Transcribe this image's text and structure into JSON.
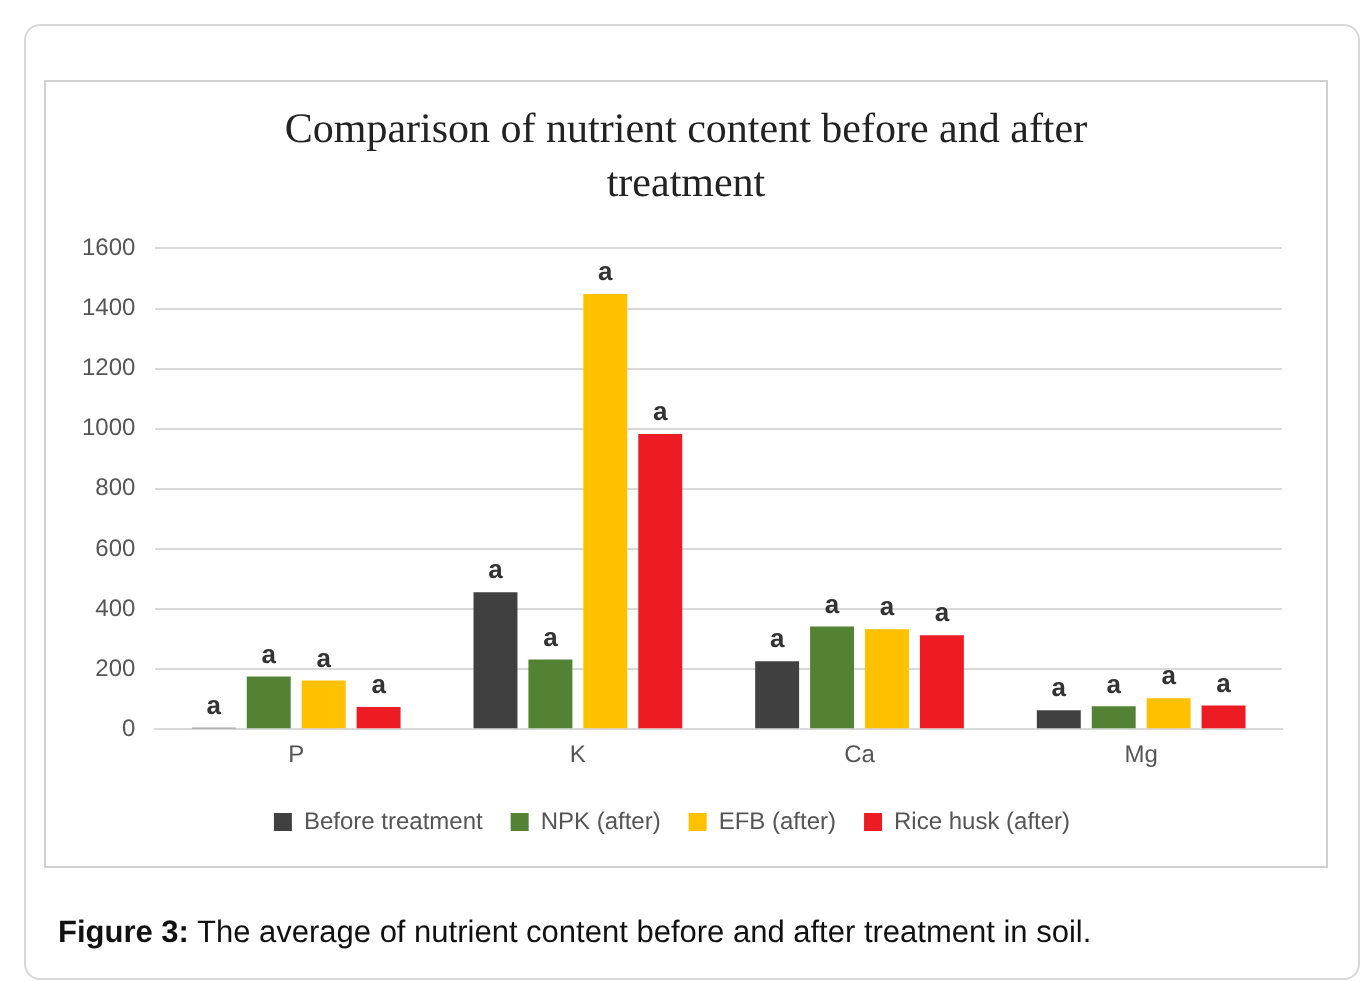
{
  "chart_data": {
    "type": "bar",
    "title": "Comparison of nutrient content before and after treatment",
    "categories": [
      "P",
      "K",
      "Ca",
      "Mg"
    ],
    "series": [
      {
        "name": "Before treatment",
        "color": "#404040",
        "values": [
          5,
          456,
          226,
          63
        ],
        "value_labels": [
          "a",
          "a",
          "a",
          "a"
        ]
      },
      {
        "name": "NPK (after)",
        "color": "#548235",
        "values": [
          175,
          232,
          342,
          76
        ],
        "value_labels": [
          "a",
          "a",
          "a",
          "a"
        ]
      },
      {
        "name": "EFB (after)",
        "color": "#ffc000",
        "values": [
          162,
          1448,
          333,
          103
        ],
        "value_labels": [
          "a",
          "a",
          "a",
          "a"
        ]
      },
      {
        "name": "Rice husk (after)",
        "color": "#ed1c24",
        "values": [
          74,
          982,
          313,
          79
        ],
        "value_labels": [
          "a",
          "a",
          "a",
          "a"
        ]
      }
    ],
    "ylim": [
      0,
      1600
    ],
    "yticks": [
      0,
      200,
      400,
      600,
      800,
      1000,
      1200,
      1400,
      1600
    ],
    "grid": "y",
    "legend": "bottom",
    "annotations": [
      "Figure 3: The average of nutrient content before and after treatment in soil."
    ]
  }
}
